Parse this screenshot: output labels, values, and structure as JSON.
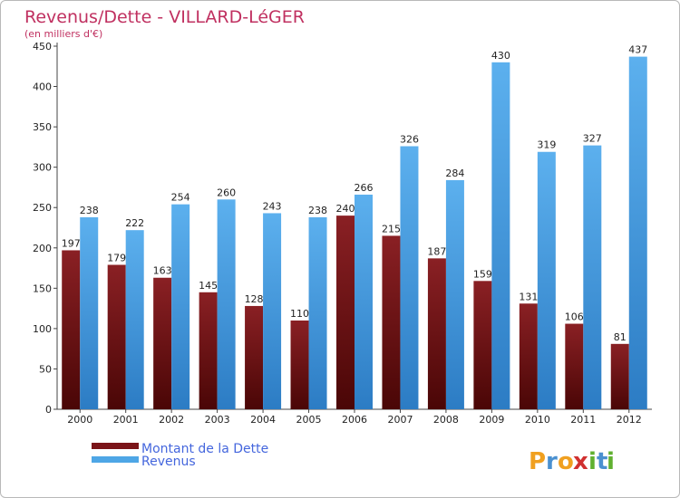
{
  "chart_data": {
    "type": "bar",
    "title": "Revenus/Dette - VILLARD-LéGER",
    "subtitle": "(en milliers d'€)",
    "categories": [
      "2000",
      "2001",
      "2002",
      "2003",
      "2004",
      "2005",
      "2006",
      "2007",
      "2008",
      "2009",
      "2010",
      "2011",
      "2012"
    ],
    "series": [
      {
        "name": "Montant de la Dette",
        "color": "#7a1418",
        "values": [
          197,
          179,
          163,
          145,
          128,
          110,
          240,
          215,
          187,
          159,
          131,
          106,
          81
        ]
      },
      {
        "name": "Revenus",
        "color": "#4ea6e6",
        "values": [
          238,
          222,
          254,
          260,
          243,
          238,
          266,
          326,
          284,
          430,
          319,
          327,
          437
        ]
      }
    ],
    "ylim": [
      0,
      450
    ],
    "yticks": [
      0,
      50,
      100,
      150,
      200,
      250,
      300,
      350,
      400,
      450
    ],
    "grid": false,
    "legend": "bottom-left"
  },
  "branding": {
    "logo_letters": [
      "P",
      "r",
      "o",
      "x",
      "i",
      "t",
      "i"
    ],
    "logo_colors": [
      "#f0a020",
      "#4a90d0",
      "#f0a020",
      "#d03030",
      "#60b030",
      "#4a90d0",
      "#60b030"
    ]
  }
}
